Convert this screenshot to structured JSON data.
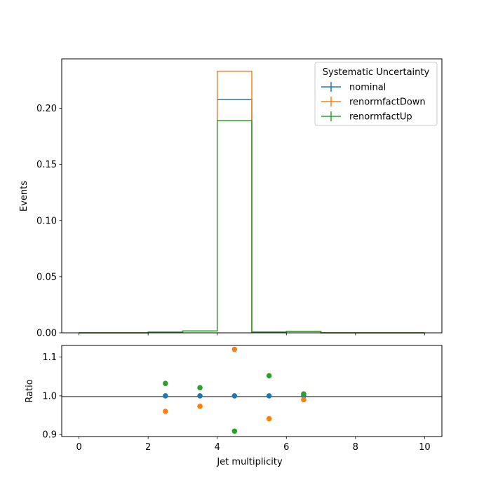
{
  "chart_data": [
    {
      "type": "line",
      "subtype": "step-histogram",
      "ylabel": "Events",
      "xlim": [
        -0.5,
        10.5
      ],
      "ylim": [
        0,
        0.244
      ],
      "yticks": [
        "0.00",
        "0.05",
        "0.10",
        "0.15",
        "0.20"
      ],
      "ytick_values": [
        0,
        0.05,
        0.1,
        0.15,
        0.2
      ],
      "bin_edges": [
        0,
        1,
        2,
        3,
        4,
        5,
        6,
        7,
        8,
        9,
        10
      ],
      "legend": {
        "title": "Systematic Uncertainty",
        "placement": "top-right"
      },
      "grid": false,
      "series": [
        {
          "name": "nominal",
          "color": "#1f77b4",
          "values": [
            0,
            0,
            0.0006,
            0.0017,
            0.208,
            0.0008,
            0.0013,
            0,
            0,
            0
          ]
        },
        {
          "name": "renormfactDown",
          "color": "#ff7f0e",
          "values": [
            0,
            0,
            0.0006,
            0.0017,
            0.233,
            0.0007,
            0.0013,
            0,
            0,
            0
          ]
        },
        {
          "name": "renormfactUp",
          "color": "#2ca02c",
          "values": [
            0,
            0,
            0.0006,
            0.0017,
            0.189,
            0.0008,
            0.0013,
            0,
            0,
            0
          ]
        }
      ]
    },
    {
      "type": "scatter",
      "xlabel": "Jet multiplicity",
      "ylabel": "Ratio",
      "xlim": [
        -0.5,
        10.5
      ],
      "ylim": [
        0.895,
        1.13
      ],
      "xticks": [
        "0",
        "2",
        "4",
        "6",
        "8",
        "10"
      ],
      "xtick_values": [
        0,
        2,
        4,
        6,
        8,
        10
      ],
      "yticks": [
        "0.9",
        "1.0",
        "1.1"
      ],
      "ytick_values": [
        0.9,
        1.0,
        1.1
      ],
      "reference_line": 1.0,
      "grid": false,
      "x": [
        2.5,
        3.5,
        4.5,
        5.5,
        6.5
      ],
      "series": [
        {
          "name": "nominal",
          "color": "#1f77b4",
          "values": [
            1.0,
            1.0,
            1.0,
            1.0,
            1.0
          ]
        },
        {
          "name": "renormfactDown",
          "color": "#ff7f0e",
          "values": [
            0.96,
            0.973,
            1.12,
            0.941,
            0.99
          ]
        },
        {
          "name": "renormfactUp",
          "color": "#2ca02c",
          "values": [
            1.032,
            1.021,
            0.909,
            1.052,
            1.005
          ]
        }
      ]
    }
  ]
}
